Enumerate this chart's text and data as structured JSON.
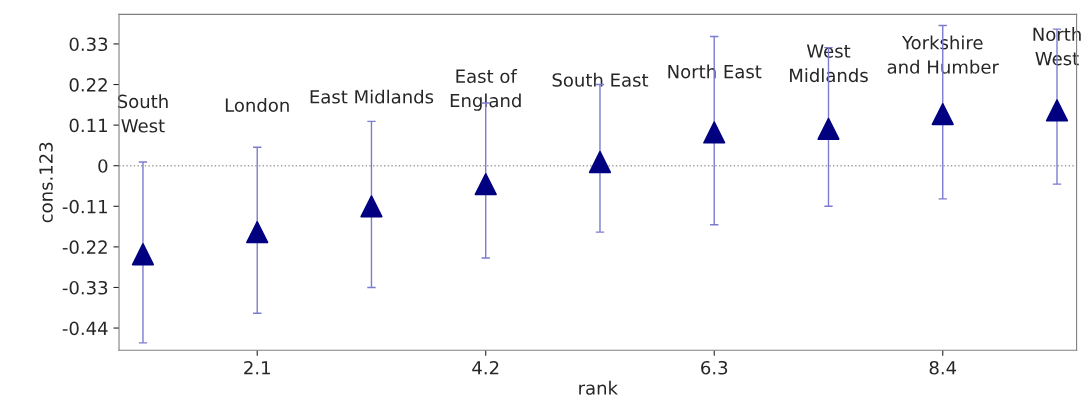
{
  "chart_data": {
    "type": "scatter",
    "xlabel": "rank",
    "ylabel": "cons.123",
    "x": [
      1.05,
      2.1,
      3.15,
      4.2,
      5.25,
      6.3,
      7.35,
      8.4,
      9.45
    ],
    "values": [
      -0.24,
      -0.18,
      -0.11,
      -0.05,
      0.01,
      0.09,
      0.1,
      0.14,
      0.15
    ],
    "errors": [
      [
        -0.48,
        0.01
      ],
      [
        -0.4,
        0.05
      ],
      [
        -0.33,
        0.12
      ],
      [
        -0.25,
        0.17
      ],
      [
        -0.18,
        0.22
      ],
      [
        -0.16,
        0.35
      ],
      [
        -0.11,
        0.32
      ],
      [
        -0.09,
        0.38
      ],
      [
        -0.05,
        0.37
      ]
    ],
    "color": "#000080",
    "marker": "triangle",
    "xlim": [
      0.83,
      9.63
    ],
    "xticks": [
      2.1,
      4.2,
      6.3,
      8.4
    ],
    "ylim": [
      -0.5,
      0.41
    ],
    "yticks": [
      -0.44,
      -0.33,
      -0.22,
      -0.11,
      0,
      0.11,
      0.22,
      0.33
    ],
    "ref_lines": [
      {
        "axis": "y",
        "value": 0,
        "color": "#a0a0a0",
        "line_style": "dotted"
      }
    ],
    "grid": false,
    "legend": false,
    "annotations": [
      "South\nWest",
      "London",
      "East Midlands",
      "East of\nEngland",
      "South East",
      "North East",
      "West\nMidlands",
      "Yorkshire\nand Humber",
      "North\nWest"
    ]
  }
}
